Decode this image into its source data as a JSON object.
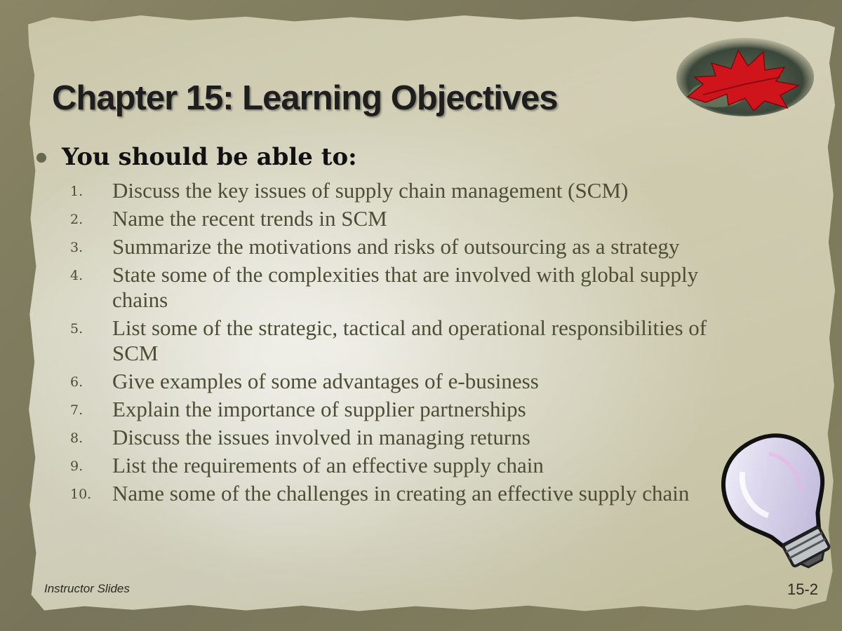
{
  "slide": {
    "title": "Chapter 15: Learning Objectives",
    "lead": "You should be able to:",
    "objectives": [
      {
        "num": "1.",
        "text": "Discuss the key issues of supply chain management (SCM)"
      },
      {
        "num": "2.",
        "text": "Name the recent trends in SCM"
      },
      {
        "num": "3.",
        "text": "Summarize the motivations and risks of outsourcing as a strategy"
      },
      {
        "num": "4.",
        "text": "State some of the complexities that are involved with global supply chains"
      },
      {
        "num": "5.",
        "text": "List some of the strategic, tactical and operational responsibilities of SCM"
      },
      {
        "num": "6.",
        "text": "Give examples of some advantages of e-business"
      },
      {
        "num": "7.",
        "text": "Explain the importance of supplier partnerships"
      },
      {
        "num": "8.",
        "text": "Discuss the issues involved in managing returns"
      },
      {
        "num": "9.",
        "text": "List the requirements of an effective supply chain"
      },
      {
        "num": "10.",
        "text": "Name some of the challenges in creating an effective supply chain"
      }
    ],
    "footer_left": "Instructor Slides",
    "footer_right": "15-2"
  },
  "icons": [
    "red-leaf-icon",
    "light-bulb-icon"
  ]
}
